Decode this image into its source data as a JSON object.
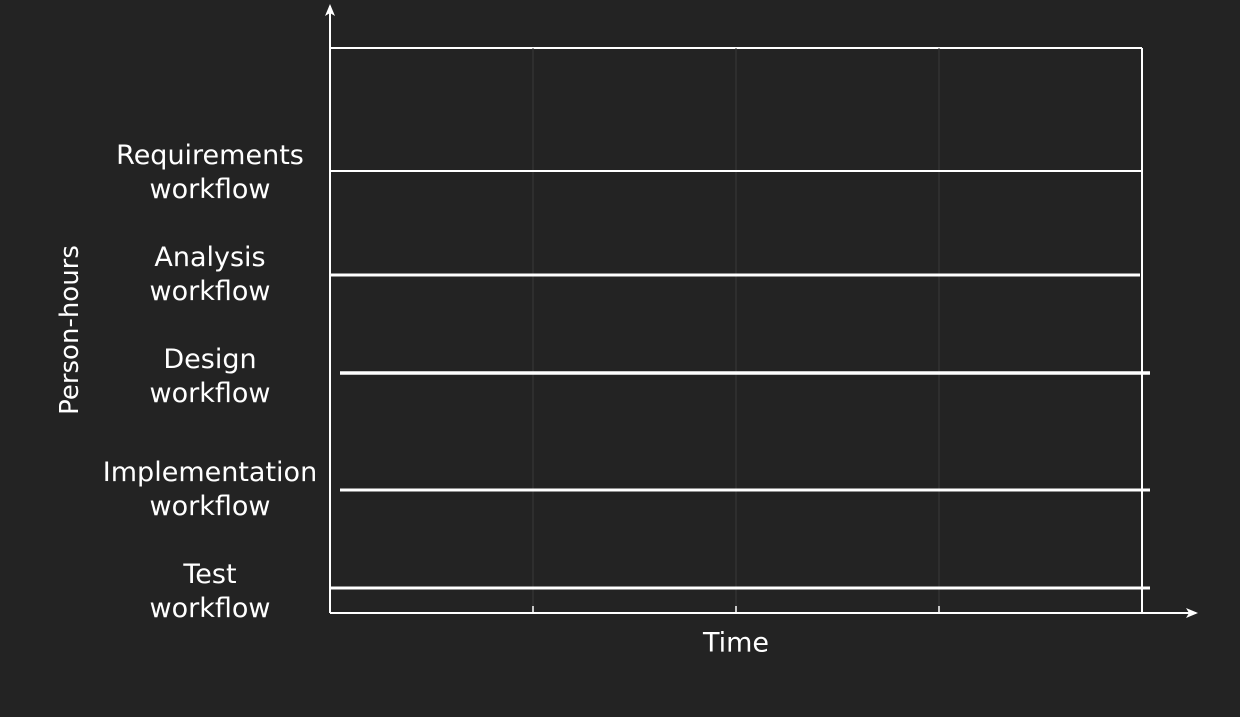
{
  "axes": {
    "y_label": "Person-hours",
    "x_label": "Time"
  },
  "colors": {
    "background": "#232323",
    "lines": "#ffffff"
  },
  "workflows": [
    {
      "line1": "Requirements",
      "line2": "workflow"
    },
    {
      "line1": "Analysis",
      "line2": "workflow"
    },
    {
      "line1": "Design",
      "line2": "workflow"
    },
    {
      "line1": "Implementation",
      "line2": "workflow"
    },
    {
      "line1": "Test",
      "line2": "workflow"
    }
  ]
}
